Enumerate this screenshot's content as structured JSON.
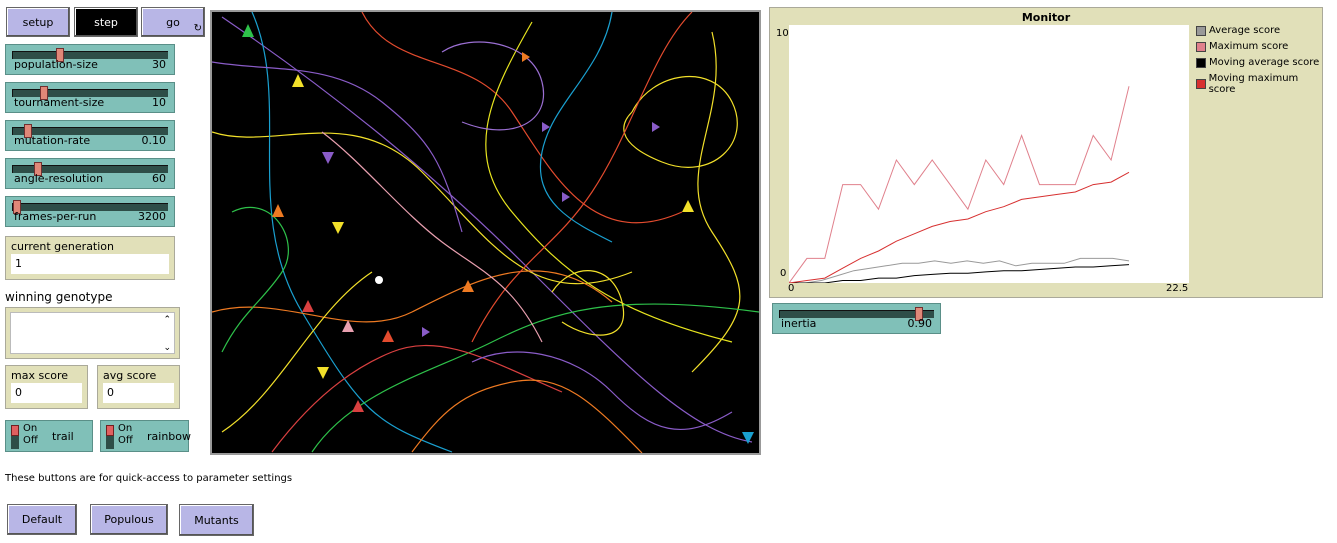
{
  "buttons": {
    "setup": "setup",
    "step": "step",
    "go": "go",
    "forever_icon": "↻"
  },
  "sliders": [
    {
      "name": "population-size",
      "value": "30",
      "fraction": 0.3
    },
    {
      "name": "tournament-size",
      "value": "10",
      "fraction": 0.18
    },
    {
      "name": "mutation-rate",
      "value": "0.10",
      "fraction": 0.1
    },
    {
      "name": "angle-resolution",
      "value": "60",
      "fraction": 0.16
    },
    {
      "name": "frames-per-run",
      "value": "3200",
      "fraction": 0.02
    }
  ],
  "current_generation": {
    "label": "current generation",
    "value": "1"
  },
  "winning_genotype": {
    "label": "winning genotype",
    "value": ""
  },
  "max_score": {
    "label": "max score",
    "value": "0"
  },
  "avg_score": {
    "label": "avg score",
    "value": "0"
  },
  "switches": [
    {
      "name": "trail",
      "on": "On",
      "off": "Off"
    },
    {
      "name": "rainbow",
      "on": "On",
      "off": "Off"
    }
  ],
  "note": "These buttons are for quick-access to parameter settings",
  "preset_buttons": [
    "Default",
    "Populous",
    "Mutants"
  ],
  "inertia": {
    "name": "inertia",
    "value": "0.90",
    "fraction": 0.9
  },
  "chart_data": {
    "type": "line",
    "title": "Monitor",
    "xlim": [
      0,
      22.5
    ],
    "ylim": [
      0,
      10
    ],
    "x_tick_labels": [
      "0",
      "22.5"
    ],
    "y_tick_labels": [
      "0",
      "10"
    ],
    "legend_position": "right",
    "series": [
      {
        "name": "Average score",
        "color": "#999999",
        "values": [
          0,
          0,
          0.1,
          0.3,
          0.5,
          0.6,
          0.7,
          0.8,
          0.8,
          0.9,
          0.8,
          0.9,
          0.8,
          0.9,
          0.7,
          0.8,
          0.8,
          0.8,
          1.0,
          1.0,
          1.0,
          0.9
        ]
      },
      {
        "name": "Maximum score",
        "color": "#e0808c",
        "values": [
          0,
          1,
          1,
          4,
          4,
          3,
          5,
          4,
          5,
          4,
          3,
          5,
          4,
          6,
          4,
          4,
          4,
          6,
          5,
          8
        ]
      },
      {
        "name": "Moving average score",
        "color": "#000000",
        "values": [
          0,
          0,
          0,
          0.1,
          0.1,
          0.2,
          0.2,
          0.3,
          0.35,
          0.4,
          0.4,
          0.45,
          0.5,
          0.5,
          0.55,
          0.6,
          0.65,
          0.65,
          0.7,
          0.75
        ]
      },
      {
        "name": "Moving maximum score",
        "color": "#d73030",
        "values": [
          0,
          0.1,
          0.2,
          0.6,
          1.0,
          1.3,
          1.7,
          2.0,
          2.3,
          2.5,
          2.6,
          2.9,
          3.1,
          3.4,
          3.5,
          3.6,
          3.7,
          4.0,
          4.1,
          4.5
        ]
      }
    ]
  }
}
